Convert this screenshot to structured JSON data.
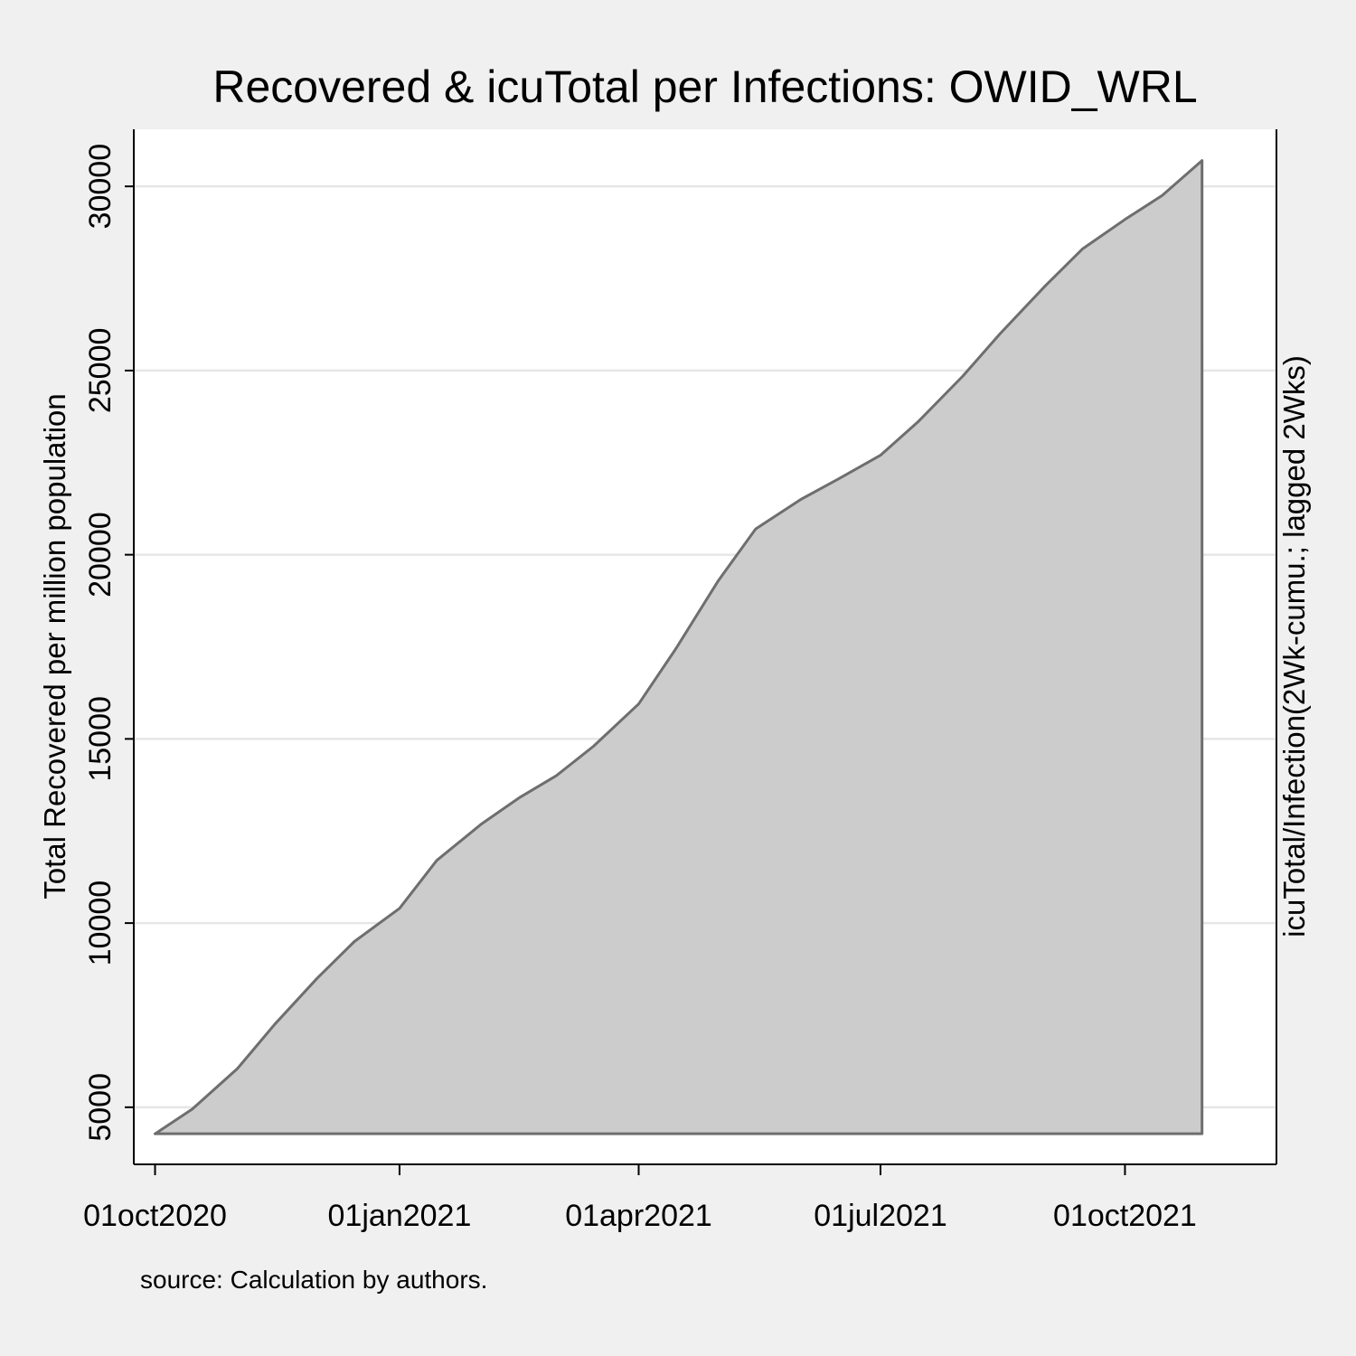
{
  "chart_data": {
    "type": "area",
    "title": "Recovered & icuTotal per Infections: OWID_WRL",
    "ylabel": "Total Recovered per million population",
    "y2label": "icuTotal/Infection(2Wk-cumu.; lagged 2Wks)",
    "note": "source: Calculation by authors.",
    "xticks": [
      "01oct2020",
      "01jan2021",
      "01apr2021",
      "01jul2021",
      "01oct2021"
    ],
    "yticks": [
      5000,
      10000,
      15000,
      20000,
      25000,
      30000
    ],
    "ylim": [
      3450,
      31550
    ],
    "xlim": [
      "2020-09-23",
      "2021-11-27"
    ],
    "grid": true,
    "fill_color": "#cccccc",
    "line_color": "#6e6e6e",
    "baseline": 4280,
    "x": [
      "2020-10-01",
      "2020-10-15",
      "2020-11-01",
      "2020-11-15",
      "2020-12-01",
      "2020-12-15",
      "2021-01-01",
      "2021-01-15",
      "2021-02-01",
      "2021-02-15",
      "2021-03-01",
      "2021-03-15",
      "2021-04-01",
      "2021-04-15",
      "2021-05-01",
      "2021-05-15",
      "2021-06-01",
      "2021-06-15",
      "2021-07-01",
      "2021-07-15",
      "2021-08-01",
      "2021-08-15",
      "2021-09-01",
      "2021-09-15",
      "2021-10-01",
      "2021-10-15",
      "2021-10-30"
    ],
    "y": [
      4280,
      4950,
      6050,
      7250,
      8500,
      9500,
      10400,
      11700,
      12700,
      13400,
      14000,
      14800,
      15950,
      17450,
      19300,
      20700,
      21500,
      22050,
      22700,
      23600,
      24850,
      26000,
      27300,
      28300,
      29100,
      29750,
      30700
    ]
  }
}
